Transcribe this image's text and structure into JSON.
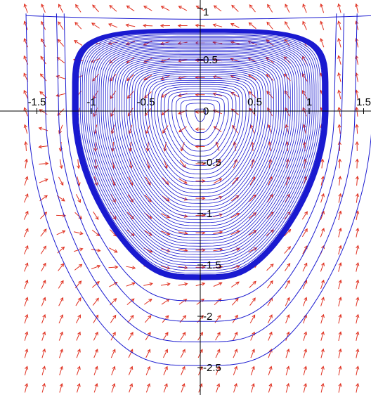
{
  "chart_data": {
    "type": "line",
    "title": "",
    "xlabel": "",
    "ylabel": "",
    "xlim": [
      -1.6,
      1.6
    ],
    "ylim": [
      -2.7,
      1.0
    ],
    "grid": false,
    "axes": "crossing at origin",
    "x_ticks": [
      {
        "value": -1.5,
        "label": "-1.5"
      },
      {
        "value": -1,
        "label": "-1"
      },
      {
        "value": -0.5,
        "label": "-0.5"
      },
      {
        "value": 0.5,
        "label": "0.5"
      },
      {
        "value": 1,
        "label": "1"
      },
      {
        "value": 1.5,
        "label": "1.5"
      }
    ],
    "y_ticks": [
      {
        "value": 1,
        "label": "1"
      },
      {
        "value": 0.5,
        "label": "0.5"
      },
      {
        "value": 0,
        "label": "0"
      },
      {
        "value": -0.5,
        "label": "-0.5"
      },
      {
        "value": -1,
        "label": "-1"
      },
      {
        "value": -1.5,
        "label": "-1.5"
      },
      {
        "value": -2,
        "label": "-2"
      },
      {
        "value": -2.5,
        "label": "-2.5"
      }
    ],
    "field": {
      "type": "direction-field",
      "x_range": [
        -1.6,
        1.6
      ],
      "y_range": [
        -2.7,
        1.0
      ],
      "columns": 20,
      "rows": 22,
      "arrow_color": "#e03020"
    },
    "orbits": {
      "color": "#1a1ad0",
      "limit_cycle": {
        "x": [
          -1.15,
          1.15
        ],
        "y": [
          -1.6,
          0.78
        ]
      },
      "outer_orbits": [
        {
          "x_half_width": 1.23,
          "y_bottom": -1.85
        },
        {
          "x_half_width": 1.3,
          "y_bottom": -2.05
        },
        {
          "x_half_width": 1.42,
          "y_bottom": -2.25
        },
        {
          "x_half_width": 1.58,
          "y_bottom": -2.48
        }
      ],
      "inner_spiral": {
        "x_half_width": [
          0.05,
          1.12
        ],
        "y_top": [
          0.02,
          0.77
        ],
        "y_bottom": [
          -0.1,
          -1.58
        ]
      }
    }
  }
}
